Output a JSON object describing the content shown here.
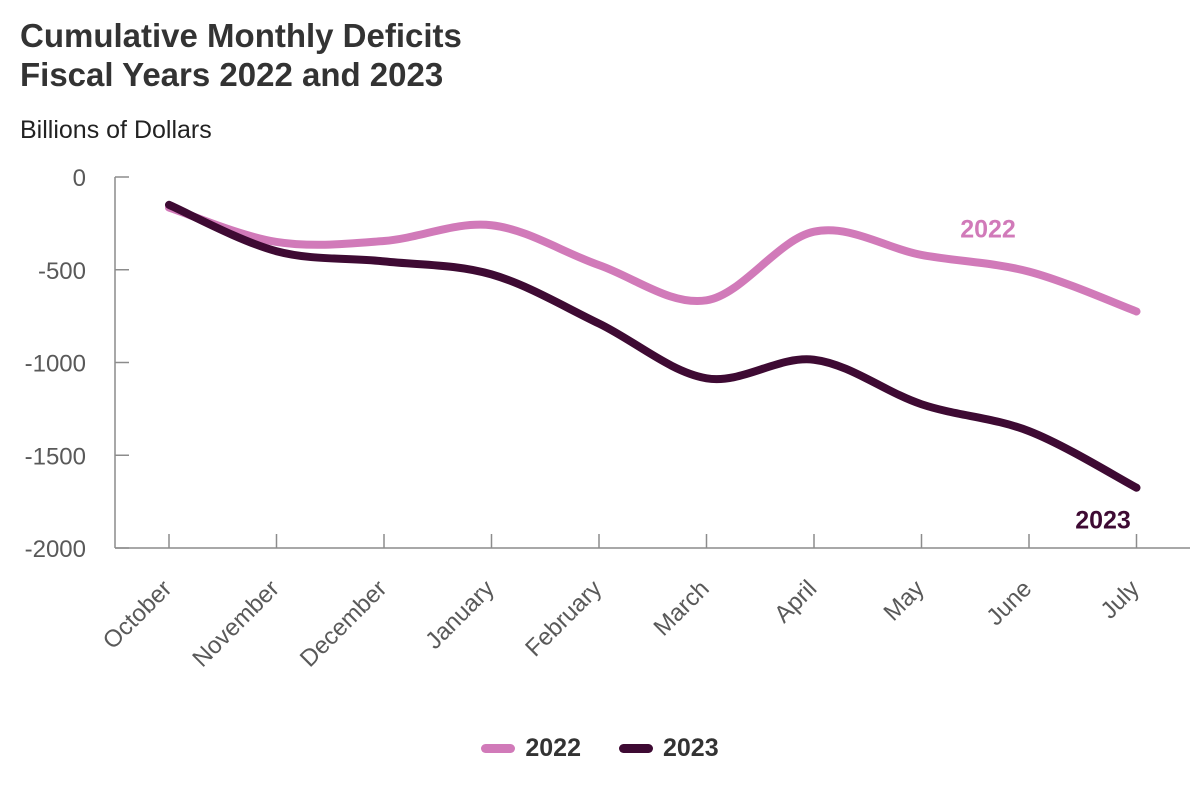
{
  "title": {
    "line1": "Cumulative Monthly Deficits",
    "line2": "Fiscal Years 2022 and 2023"
  },
  "unit_label": "Billions of Dollars",
  "chart_data": {
    "type": "line",
    "categories": [
      "October",
      "November",
      "December",
      "January",
      "February",
      "March",
      "April",
      "May",
      "June",
      "July"
    ],
    "series": [
      {
        "name": "2022",
        "color": "#d17ab9",
        "values": [
          -165,
          -350,
          -345,
          -260,
          -475,
          -665,
          -295,
          -420,
          -510,
          -725
        ]
      },
      {
        "name": "2023",
        "color": "#3e0a33",
        "values": [
          -150,
          -400,
          -455,
          -525,
          -790,
          -1085,
          -985,
          -1225,
          -1370,
          -1675
        ]
      }
    ],
    "ylim": [
      -2000,
      0
    ],
    "yticks": [
      0,
      -500,
      -1000,
      -1500,
      -2000
    ],
    "ytick_labels": [
      "0",
      "-500",
      "-1000",
      "-1500",
      "-2000"
    ],
    "grid": false,
    "legend": "bottom-center",
    "annotations": [
      "2022",
      "2023"
    ]
  }
}
